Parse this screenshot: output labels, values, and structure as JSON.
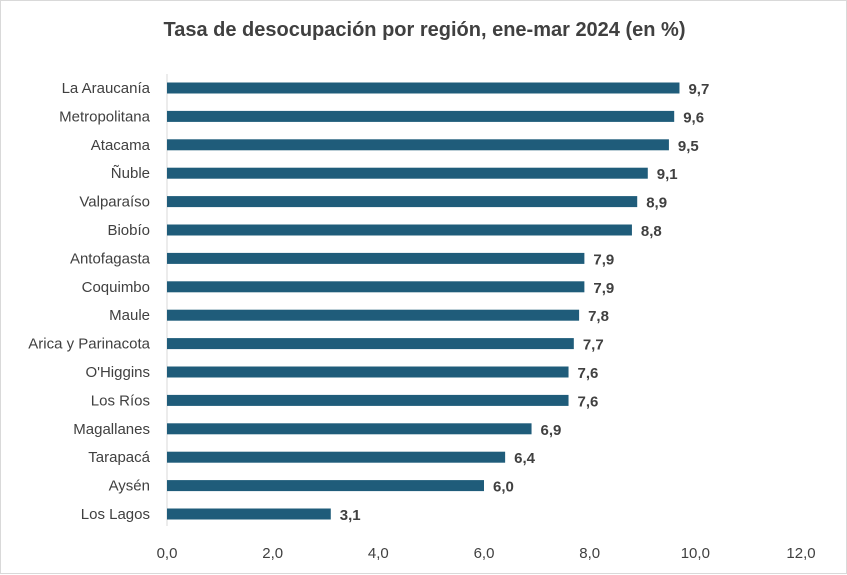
{
  "chart_data": {
    "type": "bar",
    "orientation": "horizontal",
    "title": "Tasa de desocupación por región, ene-mar 2024 (en %)",
    "categories": [
      "La Araucanía",
      "Metropolitana",
      "Atacama",
      "Ñuble",
      "Valparaíso",
      "Biobío",
      "Antofagasta",
      "Coquimbo",
      "Maule",
      "Arica y Parinacota",
      "O'Higgins",
      "Los Ríos",
      "Magallanes",
      "Tarapacá",
      "Aysén",
      "Los Lagos"
    ],
    "values": [
      9.7,
      9.6,
      9.5,
      9.1,
      8.9,
      8.8,
      7.9,
      7.9,
      7.8,
      7.7,
      7.6,
      7.6,
      6.9,
      6.4,
      6.0,
      3.1
    ],
    "value_labels": [
      "9,7",
      "9,6",
      "9,5",
      "9,1",
      "8,9",
      "8,8",
      "7,9",
      "7,9",
      "7,8",
      "7,7",
      "7,6",
      "7,6",
      "6,9",
      "6,4",
      "6,0",
      "3,1"
    ],
    "xlim": [
      0,
      12
    ],
    "x_ticks": [
      0,
      2,
      4,
      6,
      8,
      10,
      12
    ],
    "x_tick_labels": [
      "0,0",
      "2,0",
      "4,0",
      "6,0",
      "8,0",
      "10,0",
      "12,0"
    ],
    "xlabel": "",
    "ylabel": "",
    "grid": false,
    "legend": "none",
    "bar_color": "#1f5c7a"
  }
}
